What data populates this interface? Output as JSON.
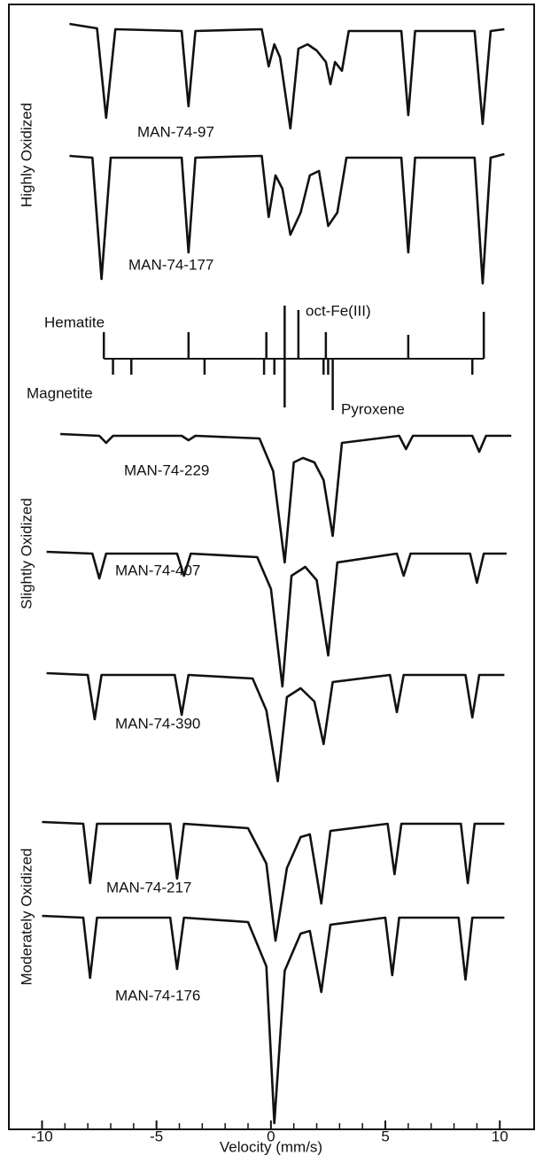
{
  "chart_data": {
    "type": "line",
    "xlabel": "Velocity (mm/s)",
    "xlim": [
      -11.45,
      11.5
    ],
    "xticks": [
      -10,
      -5,
      0,
      5,
      10
    ],
    "xminorticks": [
      -9,
      -8,
      -7,
      -6,
      -4,
      -3,
      -2,
      -1,
      1,
      2,
      3,
      4,
      6,
      7,
      8,
      9
    ],
    "color": "#111111",
    "groups": [
      "Highly Oxidized",
      "Slightly Oxidized",
      "Moderately Oxidized"
    ],
    "series": [
      {
        "name": "MAN-74-97",
        "x": [
          -8.8,
          -7.6,
          -7.2,
          -6.8,
          -3.9,
          -3.6,
          -3.3,
          -0.4,
          -0.1,
          0.15,
          0.4,
          0.85,
          1.2,
          1.6,
          2.0,
          2.4,
          2.6,
          2.8,
          3.1,
          3.4,
          5.7,
          6.0,
          6.3,
          8.9,
          9.25,
          9.6,
          10.2
        ],
        "values": [
          8,
          3,
          -98,
          2,
          0,
          -85,
          0,
          2,
          -40,
          -15,
          -30,
          -110,
          -20,
          -15,
          -22,
          -35,
          -60,
          -35,
          -45,
          0,
          0,
          -95,
          0,
          0,
          -105,
          0,
          2
        ]
      },
      {
        "name": "MAN-74-177",
        "x": [
          -8.8,
          -7.8,
          -7.4,
          -7.0,
          -3.9,
          -3.6,
          -3.3,
          -0.4,
          -0.1,
          0.2,
          0.5,
          0.85,
          1.3,
          1.7,
          2.1,
          2.5,
          2.9,
          3.3,
          5.7,
          6.0,
          6.3,
          8.9,
          9.25,
          9.6,
          10.2
        ],
        "values": [
          2,
          0,
          -137,
          0,
          0,
          -107,
          0,
          2,
          -67,
          -20,
          -35,
          -87,
          -62,
          -20,
          -15,
          -77,
          -62,
          0,
          0,
          -107,
          0,
          0,
          -142,
          0,
          4
        ]
      },
      {
        "name": "MAN-74-229",
        "x": [
          -9.2,
          -7.5,
          -7.2,
          -6.9,
          -3.9,
          -3.6,
          -3.3,
          -0.5,
          0.1,
          0.6,
          1.0,
          1.4,
          1.9,
          2.3,
          2.7,
          3.1,
          5.6,
          5.9,
          6.2,
          8.8,
          9.1,
          9.4,
          10.5
        ],
        "values": [
          2,
          0,
          -8,
          0,
          0,
          -5,
          0,
          -3,
          -40,
          -143,
          -30,
          -25,
          -30,
          -50,
          -113,
          -8,
          0,
          -15,
          0,
          0,
          -18,
          0,
          0
        ]
      },
      {
        "name": "MAN-74-407",
        "x": [
          -9.8,
          -7.8,
          -7.5,
          -7.2,
          -4.1,
          -3.8,
          -3.5,
          -0.6,
          0.0,
          0.5,
          0.9,
          1.5,
          2.0,
          2.5,
          2.9,
          5.5,
          5.8,
          6.1,
          8.7,
          9.0,
          9.3,
          10.3
        ],
        "values": [
          2,
          0,
          -28,
          0,
          0,
          -25,
          0,
          -4,
          -40,
          -150,
          -25,
          -15,
          -30,
          -115,
          -10,
          0,
          -25,
          0,
          0,
          -33,
          0,
          0
        ]
      },
      {
        "name": "MAN-74-390",
        "x": [
          -9.8,
          -8.0,
          -7.7,
          -7.4,
          -4.2,
          -3.9,
          -3.6,
          -0.8,
          -0.2,
          0.3,
          0.7,
          1.3,
          1.9,
          2.3,
          2.7,
          5.2,
          5.5,
          5.8,
          8.5,
          8.8,
          9.1,
          10.2
        ],
        "values": [
          2,
          0,
          -50,
          0,
          0,
          -45,
          0,
          -4,
          -40,
          -120,
          -25,
          -15,
          -30,
          -78,
          -8,
          0,
          -42,
          0,
          0,
          -48,
          0,
          0
        ]
      },
      {
        "name": "MAN-74-217",
        "x": [
          -10.0,
          -8.2,
          -7.9,
          -7.6,
          -4.4,
          -4.1,
          -3.8,
          -1.0,
          -0.6,
          -0.2,
          0.2,
          0.7,
          1.3,
          1.7,
          2.2,
          2.6,
          5.1,
          5.4,
          5.7,
          8.3,
          8.6,
          8.9,
          10.2
        ],
        "values": [
          2,
          0,
          -67,
          0,
          0,
          -62,
          0,
          -5,
          -25,
          -45,
          -132,
          -50,
          -15,
          -12,
          -90,
          -8,
          0,
          -57,
          0,
          0,
          -67,
          0,
          0
        ]
      },
      {
        "name": "MAN-74-176",
        "x": [
          -10.0,
          -8.2,
          -7.9,
          -7.6,
          -4.4,
          -4.1,
          -3.8,
          -1.0,
          -0.6,
          -0.2,
          0.15,
          0.6,
          1.3,
          1.7,
          2.2,
          2.6,
          5.0,
          5.3,
          5.6,
          8.2,
          8.5,
          8.8,
          10.2
        ],
        "values": [
          2,
          0,
          -68,
          0,
          0,
          -58,
          0,
          -5,
          -30,
          -55,
          -232,
          -60,
          -18,
          -15,
          -84,
          -8,
          0,
          -65,
          0,
          0,
          -70,
          0,
          0
        ]
      }
    ],
    "reference_lines": [
      {
        "name": "Hematite",
        "x": [
          -7.3,
          -3.6,
          -0.2,
          0.6,
          2.4,
          6.0,
          9.3
        ],
        "values": [
          30,
          30,
          30,
          60,
          30,
          27,
          53
        ]
      },
      {
        "name": "oct-Fe(III)",
        "x": [
          1.2
        ],
        "values": [
          55
        ]
      },
      {
        "name": "Magnetite",
        "x": [
          -6.9,
          -6.1,
          -2.9,
          -0.3,
          0.15,
          2.3,
          2.5,
          8.8
        ],
        "values": [
          -18,
          -18,
          -18,
          -18,
          -18,
          -18,
          -18,
          -18
        ]
      },
      {
        "name": "Pyroxene",
        "x": [
          0.6,
          2.7
        ],
        "values": [
          -55,
          -58
        ]
      }
    ]
  }
}
